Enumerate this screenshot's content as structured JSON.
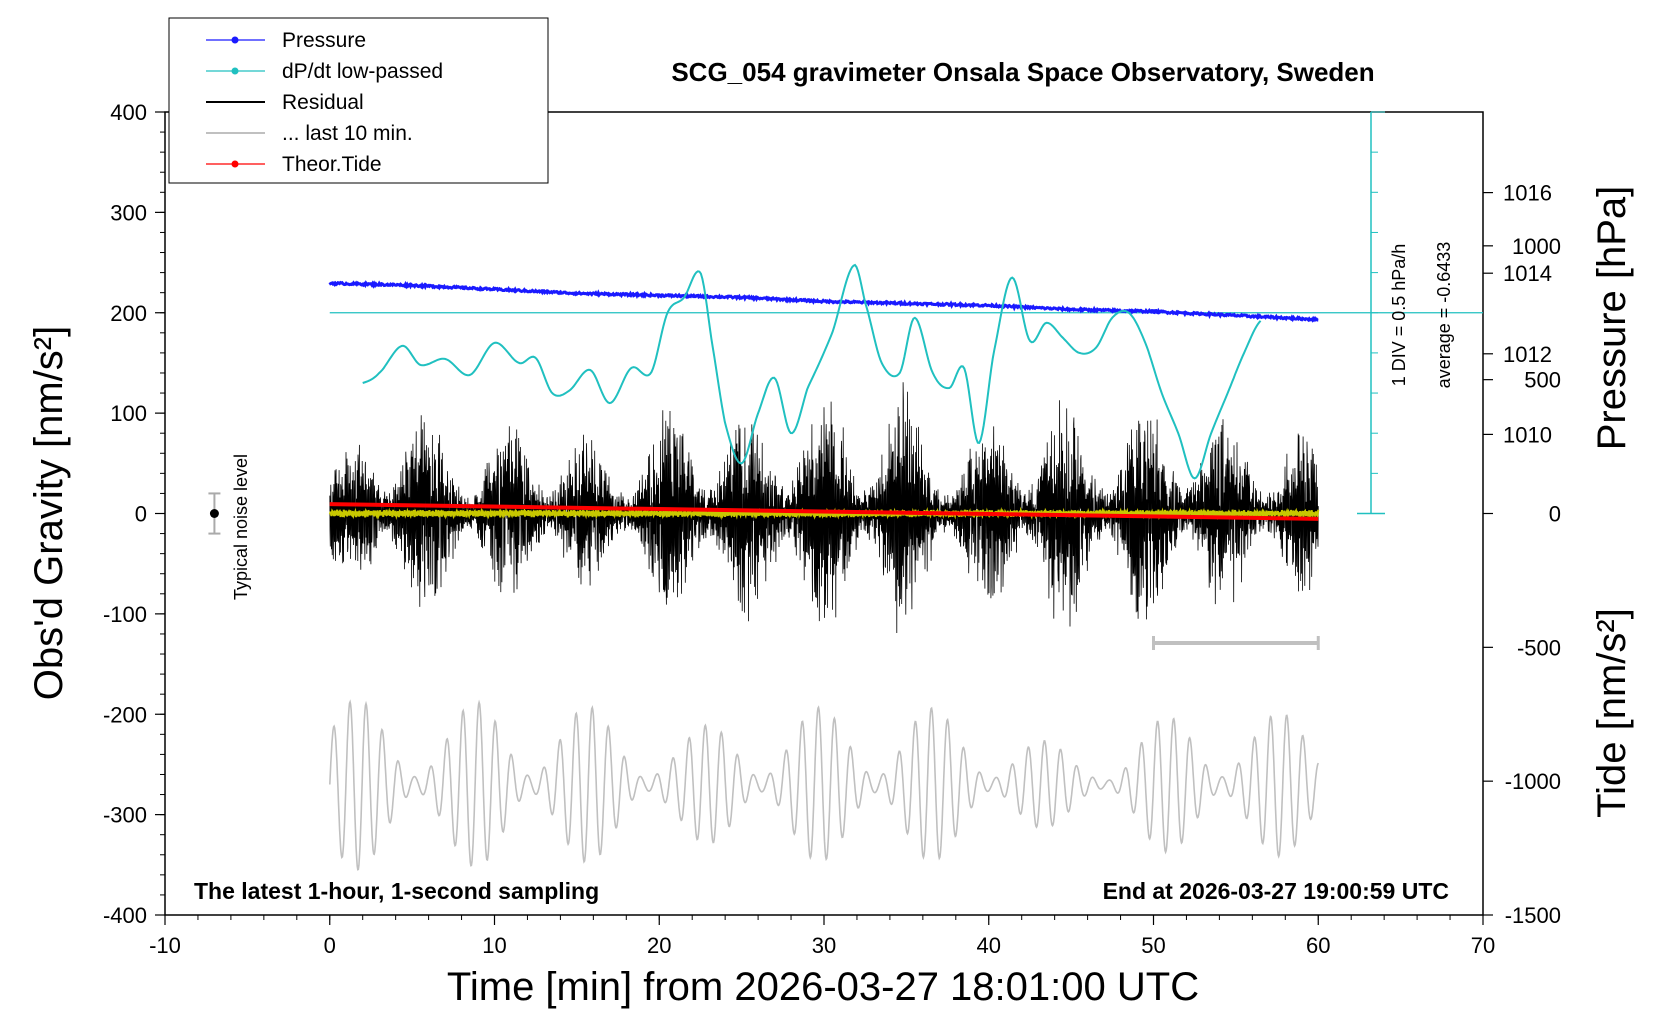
{
  "chart_data": {
    "type": "line",
    "title": "SCG_054 gravimeter Onsala Space Observatory, Sweden",
    "xlabel": "Time [min] from 2026-03-27 18:01:00 UTC",
    "ylabel_left": "Obs'd Gravity [nm/s²]",
    "ylabel_right_top": "Pressure [hPa]",
    "ylabel_right_bottom": "Tide [nm/s²]",
    "xlim": [
      -10,
      70
    ],
    "ylim": [
      -400,
      400
    ],
    "pressure_ylim": [
      1008,
      1018
    ],
    "tide_ylim": [
      -1500,
      1500
    ],
    "x_ticks": [
      "-10",
      "0",
      "10",
      "20",
      "30",
      "40",
      "50",
      "60",
      "70"
    ],
    "y_ticks": [
      "400",
      "300",
      "200",
      "100",
      "0",
      "-100",
      "-200",
      "-300",
      "-400"
    ],
    "pressure_ticks": [
      "1016",
      "1014",
      "1012",
      "1010"
    ],
    "tide_ticks": [
      "1000",
      "500",
      "0",
      "-500",
      "-1000",
      "-1500"
    ],
    "bottom_left_note": "The latest 1-hour, 1-second sampling",
    "bottom_right_note": "End at 2026-03-27 19:00:59 UTC",
    "noise_label": "Typical noise level",
    "dpdt_scale_label": "1 DIV = 0.5 hPa/h",
    "dpdt_average_label": "average = -0.6433",
    "legend_position": "top-left",
    "legend": [
      {
        "label": "Pressure",
        "color": "#1a1aff",
        "style": "line-dot"
      },
      {
        "label": "dP/dt low-passed",
        "color": "#20c0c0",
        "style": "line-dot"
      },
      {
        "label": "Residual",
        "color": "#000000",
        "style": "line"
      },
      {
        "label": "... last 10 min.",
        "color": "#c0c0c0",
        "style": "line"
      },
      {
        "label": "Theor.Tide",
        "color": "#ff0000",
        "style": "line-dot"
      }
    ],
    "series": [
      {
        "name": "Pressure",
        "units": "hPa",
        "color": "#1a1aff",
        "x": [
          0,
          5,
          10,
          15,
          20,
          25,
          30,
          35,
          40,
          45,
          50,
          55,
          60
        ],
        "y": [
          1013.75,
          1013.7,
          1013.6,
          1013.5,
          1013.45,
          1013.4,
          1013.3,
          1013.25,
          1013.2,
          1013.1,
          1013.05,
          1012.95,
          1012.85
        ]
      },
      {
        "name": "dP/dt low-passed",
        "units": "nm/s² (plot scale)",
        "color": "#20c0c0",
        "x": [
          2,
          3,
          4.4,
          5.5,
          7,
          8.5,
          10,
          11.5,
          12.5,
          13.5,
          14.5,
          15.8,
          17,
          18.3,
          19.5,
          20.5,
          21.5,
          22.5,
          23.2,
          24,
          25,
          26,
          27,
          28,
          29,
          30.5,
          31.8,
          32.5,
          33.5,
          34.6,
          35.5,
          36.6,
          37.6,
          38.5,
          39.4,
          40.3,
          41.4,
          42.5,
          43.5,
          44.5,
          45.5,
          46.5,
          47.5,
          48.5,
          49.5,
          50.5,
          51.5,
          52.5,
          53.5,
          54.5,
          55.5,
          56.5
        ],
        "y": [
          130,
          140,
          167,
          148,
          154,
          138,
          170,
          150,
          155,
          120,
          122,
          143,
          110,
          145,
          140,
          200,
          215,
          240,
          170,
          90,
          50,
          100,
          135,
          80,
          125,
          180,
          247,
          210,
          150,
          140,
          195,
          140,
          125,
          145,
          70,
          160,
          235,
          172,
          190,
          175,
          160,
          165,
          195,
          200,
          170,
          120,
          80,
          35,
          80,
          120,
          160,
          192
        ]
      },
      {
        "name": "Residual",
        "units": "nm/s²",
        "color": "#000000",
        "x": [
          0,
          2,
          4,
          6,
          8,
          10,
          12,
          14,
          16,
          18,
          20,
          22,
          24,
          26,
          28,
          30,
          32,
          34,
          36,
          38,
          40,
          42,
          44,
          46,
          48,
          50,
          52,
          54,
          56,
          58,
          60
        ],
        "envelope": [
          70,
          80,
          150,
          110,
          90,
          100,
          95,
          105,
          80,
          90,
          110,
          120,
          130,
          110,
          160,
          120,
          120,
          150,
          110,
          90,
          100,
          135,
          130,
          120,
          125,
          110,
          135,
          105,
          100,
          95,
          80
        ]
      },
      {
        "name": "... last 10 min.",
        "units": "nm/s² (plot scale)",
        "color": "#c0c0c0",
        "x_range": [
          0,
          60
        ],
        "baseline": -270,
        "envelope": [
          90,
          80,
          75,
          90,
          80,
          75,
          50,
          70,
          75,
          80,
          80,
          70,
          50,
          30,
          60,
          80,
          70,
          75
        ]
      },
      {
        "name": "Theor.Tide",
        "units": "nm/s²",
        "color": "#ff0000",
        "x": [
          0,
          60
        ],
        "y": [
          35,
          -20
        ]
      }
    ],
    "overlay_markers": {
      "dpdt_zero_level": 200,
      "last_10min_bar": [
        50,
        60
      ],
      "noise_point": {
        "x": -7,
        "y": 0,
        "err": 20
      }
    }
  }
}
